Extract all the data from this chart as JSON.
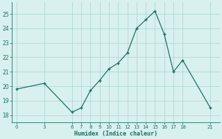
{
  "title": "",
  "xlabel": "Humidex (Indice chaleur)",
  "ylabel": "",
  "x": [
    0,
    3,
    6,
    7,
    8,
    9,
    10,
    11,
    12,
    13,
    14,
    15,
    16,
    17,
    18,
    21
  ],
  "y": [
    19.8,
    20.2,
    18.2,
    18.5,
    19.7,
    20.4,
    21.2,
    21.6,
    22.3,
    24.0,
    24.6,
    25.2,
    23.6,
    21.0,
    21.8,
    18.5
  ],
  "line_color": "#1a6e62",
  "bg_color": "#d8f0ee",
  "grid_color": "#b0d8d4",
  "xlim": [
    -0.5,
    22
  ],
  "ylim": [
    17.5,
    25.8
  ],
  "xticks": [
    0,
    3,
    6,
    7,
    8,
    9,
    10,
    11,
    12,
    13,
    14,
    15,
    16,
    17,
    18,
    21
  ],
  "yticks": [
    18,
    19,
    20,
    21,
    22,
    23,
    24,
    25
  ],
  "marker": "+"
}
